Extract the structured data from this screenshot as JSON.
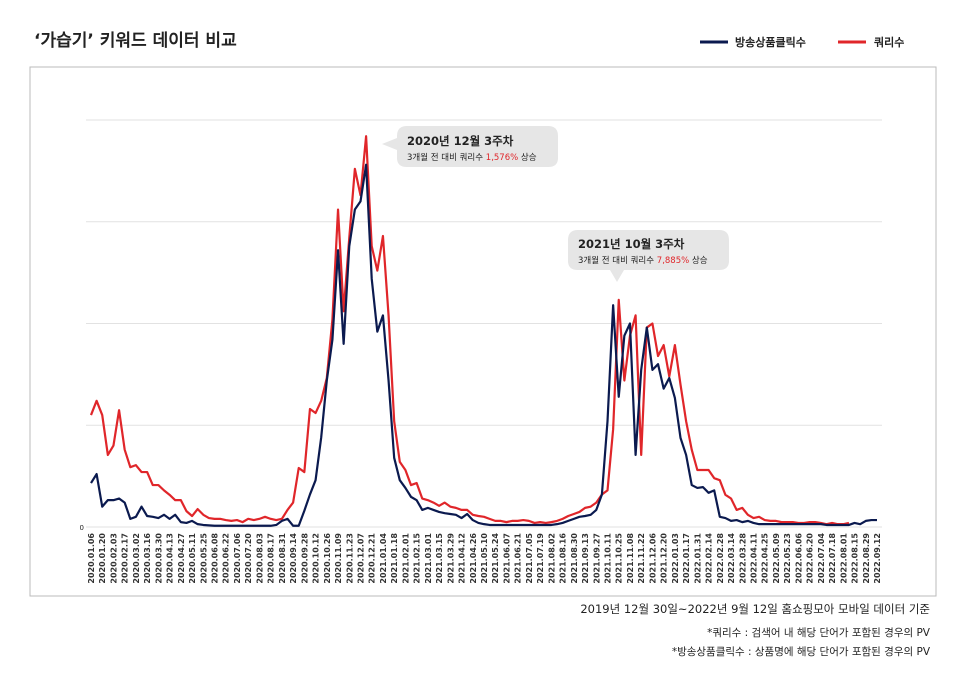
{
  "chart_data": {
    "type": "line",
    "title": "‘가습기’ 키워드 데이터 비교",
    "categories": [
      "2020.01.06",
      null,
      "2020.01.20",
      null,
      "2020.02.03",
      null,
      "2020.02.17",
      null,
      "2020.03.02",
      null,
      "2020.03.16",
      null,
      "2020.03.30",
      null,
      "2020.04.13",
      null,
      "2020.04.27",
      null,
      "2020.05.11",
      null,
      "2020.05.25",
      null,
      "2020.06.08",
      null,
      "2020.06.22",
      null,
      "2020.07.06",
      null,
      "2020.07.20",
      null,
      "2020.08.03",
      null,
      "2020.08.17",
      null,
      "2020.08.31",
      null,
      "2020.09.14",
      null,
      "2020.09.28",
      null,
      "2020.10.12",
      null,
      "2020.10.26",
      null,
      "2020.11.09",
      null,
      "2020.11.23",
      null,
      "2020.12.07",
      null,
      "2020.12.21",
      null,
      "2021.01.04",
      null,
      "2021.01.18",
      null,
      "2021.02.01",
      null,
      "2021.02.15",
      null,
      "2021.03.01",
      null,
      "2021.03.15",
      null,
      "2021.03.29",
      null,
      "2021.04.12",
      null,
      "2021.04.26",
      null,
      "2021.05.10",
      null,
      "2021.05.24",
      null,
      "2021.06.07",
      null,
      "2021.06.21",
      null,
      "2021.07.05",
      null,
      "2021.07.19",
      null,
      "2021.08.02",
      null,
      "2021.08.16",
      null,
      "2021.08.30",
      null,
      "2021.09.13",
      null,
      "2021.09.27",
      null,
      "2021.10.11",
      null,
      "2021.10.25",
      null,
      "2021.11.08",
      null,
      "2021.11.22",
      null,
      "2021.12.06",
      null,
      "2021.12.20",
      null,
      "2022.01.03",
      null,
      "2022.01.17",
      null,
      "2022.01.31",
      null,
      "2022.02.14",
      null,
      "2022.02.28",
      null,
      "2022.03.14",
      null,
      "2022.03.28",
      null,
      "2022.04.11",
      null,
      "2022.04.25",
      null,
      "2022.05.09",
      null,
      "2022.05.23",
      null,
      "2022.06.06",
      null,
      "2022.06.20",
      null,
      "2022.07.04",
      null,
      "2022.07.18",
      null,
      "2022.08.01",
      null,
      "2022.08.15",
      null,
      "2022.08.29",
      null,
      "2022.09.12"
    ],
    "series": [
      {
        "name": "방송상품클릭수",
        "color": "#0b1a4f",
        "values": [
          10.8,
          13,
          5,
          6.6,
          6.6,
          7,
          6,
          2,
          2.5,
          5,
          2.7,
          2.5,
          2.2,
          3,
          2,
          3,
          1.2,
          1,
          1.5,
          0.7,
          0.5,
          0.4,
          0.3,
          0.3,
          0.3,
          0.3,
          0.3,
          0.3,
          0.3,
          0.3,
          0.3,
          0.3,
          0.3,
          0.5,
          1.5,
          2,
          0.3,
          0.3,
          4,
          8,
          11.5,
          22,
          36,
          46,
          68,
          45,
          69,
          78,
          80,
          89,
          61,
          48,
          52,
          36,
          17,
          11.5,
          9.6,
          7.4,
          6.6,
          4.2,
          4.7,
          4.2,
          3.7,
          3.4,
          3.2,
          3,
          2.2,
          3.2,
          1.7,
          1,
          0.7,
          0.5,
          0.5,
          0.5,
          0.5,
          0.5,
          0.5,
          0.5,
          0.5,
          0.5,
          0.5,
          0.5,
          0.5,
          0.7,
          1,
          1.5,
          2,
          2.5,
          2.7,
          3,
          4.2,
          8,
          26,
          54.5,
          32,
          47,
          50,
          17.7,
          38.6,
          49,
          38.6,
          40,
          34,
          36.6,
          31.7,
          21.9,
          17.7,
          10.3,
          9.6,
          9.8,
          8.4,
          9,
          2.5,
          2.2,
          1.5,
          1.7,
          1.2,
          1.5,
          1,
          0.7,
          0.7,
          0.7,
          0.7,
          0.7,
          0.7,
          0.7,
          0.7,
          0.7,
          0.7,
          0.7,
          0.7,
          0.5,
          0.5,
          0.5,
          0.5,
          0.5,
          1,
          0.7,
          1.5,
          1.7,
          1.7
        ]
      },
      {
        "name": "쿼리수",
        "color": "#e0262a",
        "values": [
          27.5,
          31,
          27.5,
          17.7,
          20,
          28.7,
          19,
          14.7,
          15.2,
          13.5,
          13.5,
          10.3,
          10.3,
          9,
          7.9,
          6.6,
          6.6,
          3.9,
          2.7,
          4.4,
          3,
          2.2,
          2,
          2,
          1.7,
          1.5,
          1.7,
          1.2,
          2,
          1.7,
          2,
          2.5,
          2,
          1.7,
          2,
          4.2,
          6,
          14.5,
          13.5,
          29,
          28,
          31,
          36.6,
          51,
          78,
          53,
          71,
          88,
          81.5,
          96,
          69,
          63,
          71.5,
          52,
          26,
          16,
          14,
          10.3,
          10.8,
          7,
          6.6,
          6,
          5.2,
          6,
          5,
          4.7,
          4.2,
          4.2,
          3,
          2.7,
          2.5,
          2,
          1.5,
          1.5,
          1.2,
          1.5,
          1.5,
          1.7,
          1.5,
          1,
          1.2,
          1,
          1.2,
          1.5,
          2,
          2.7,
          3.2,
          3.7,
          4.7,
          5,
          6,
          8,
          9,
          24,
          55.8,
          36,
          47,
          52,
          17.7,
          49,
          50,
          42,
          44.7,
          37,
          44.7,
          35,
          26,
          19,
          14,
          14,
          14,
          12,
          11.5,
          7.9,
          7,
          4.2,
          4.7,
          3,
          2.2,
          2.5,
          1.7,
          1.5,
          1.5,
          1.2,
          1.2,
          1.2,
          1,
          1,
          1.2,
          1.2,
          1,
          0.7,
          1,
          0.7,
          0.7,
          1,
          null,
          null,
          null,
          null,
          null
        ]
      }
    ],
    "ylim": [
      0,
      100
    ],
    "yticks": [
      0
    ],
    "grid_values": [
      25,
      50,
      75,
      100
    ],
    "annotations": [
      {
        "title": "2020년 12월 3주차",
        "text": "3개월 전 대비 쿼리수",
        "highlight": "1,576%",
        "suffix": "상승"
      },
      {
        "title": "2021년 10월 3주차",
        "text": "3개월 전 대비 쿼리수",
        "highlight": "7,885%",
        "suffix": "상승"
      }
    ],
    "footnotes": [
      "2019년 12월 30일~2022년 9월 12일 홈쇼핑모아 모바일 데이터 기준",
      "*쿼리수 : 검색어 내 해당 단어가 포함된 경우의 PV",
      "*방송상품클릭수 : 상품명에 해당 단어가 포함된 경우의 PV"
    ]
  }
}
